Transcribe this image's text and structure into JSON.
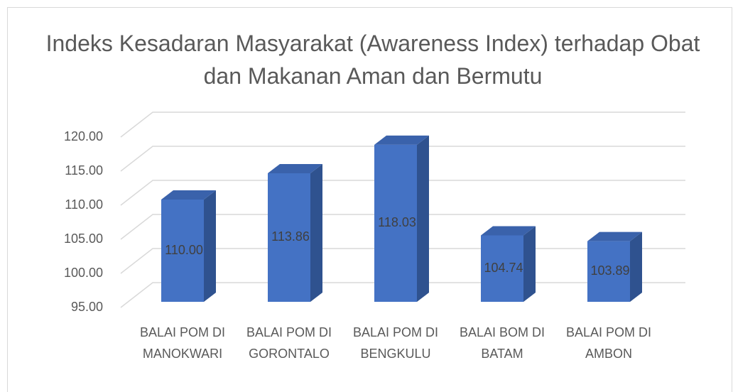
{
  "chart_data": {
    "type": "bar3d",
    "title": "Indeks Kesadaran Masyarakat (Awareness Index) terhadap Obat dan Makanan Aman dan Bermutu",
    "categories": [
      "BALAI POM DI MANOKWARI",
      "BALAI POM DI GORONTALO",
      "BALAI POM DI BENGKULU",
      "BALAI BOM DI BATAM",
      "BALAI POM DI AMBON"
    ],
    "values": [
      110.0,
      113.86,
      118.03,
      104.74,
      103.89
    ],
    "value_labels": [
      "110.00",
      "113.86",
      "118.03",
      "104.74",
      "103.89"
    ],
    "color": "#4472c4",
    "ylim": [
      95,
      120
    ],
    "yticks": [
      {
        "value": 95,
        "label": "95.00"
      },
      {
        "value": 100,
        "label": "100.00"
      },
      {
        "value": 105,
        "label": "105.00"
      },
      {
        "value": 110,
        "label": "110.00"
      },
      {
        "value": 115,
        "label": "115.00"
      },
      {
        "value": 120,
        "label": "120.00"
      }
    ],
    "grid": true
  }
}
